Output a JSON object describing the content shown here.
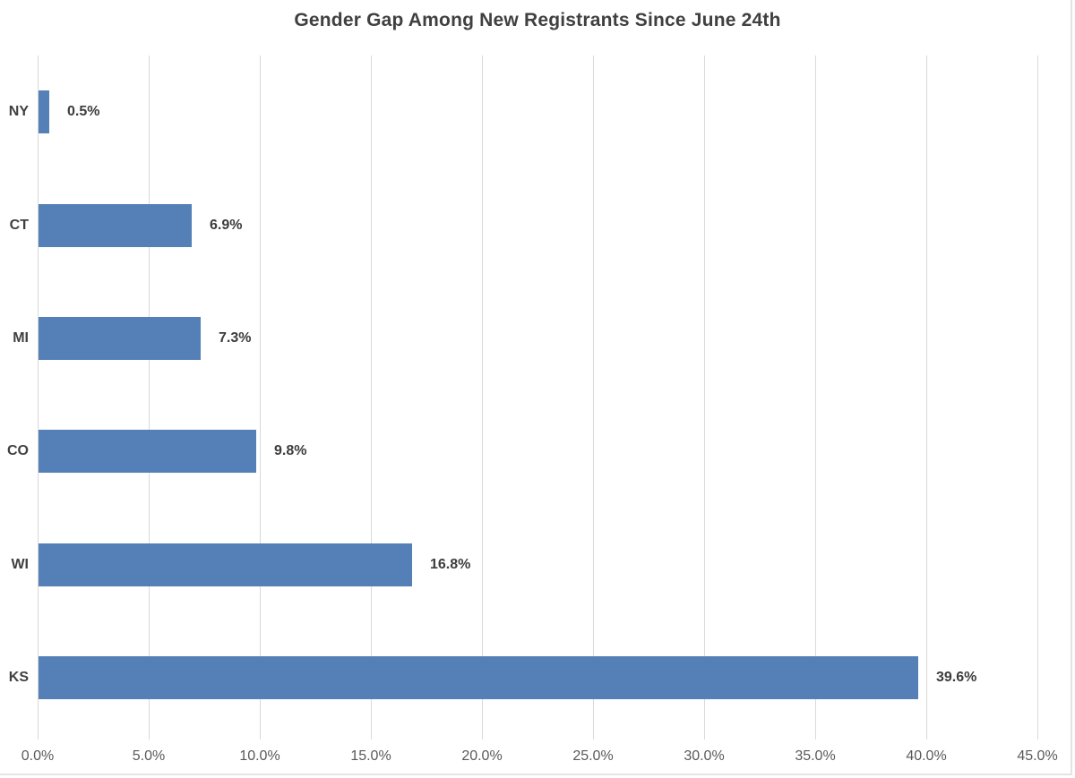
{
  "page": {
    "background": "#ffffff",
    "frame_border_color": "#e4e4e4"
  },
  "chart_data": {
    "type": "bar",
    "orientation": "horizontal",
    "title": "Gender Gap Among New Registrants Since June 24th",
    "categories": [
      "NY",
      "CT",
      "MI",
      "CO",
      "WI",
      "KS"
    ],
    "values": [
      0.5,
      6.9,
      7.3,
      9.8,
      16.8,
      39.6
    ],
    "data_labels": [
      "0.5%",
      "6.9%",
      "7.3%",
      "9.8%",
      "16.8%",
      "39.6%"
    ],
    "x_tick_labels": [
      "0.0%",
      "5.0%",
      "10.0%",
      "15.0%",
      "20.0%",
      "25.0%",
      "30.0%",
      "35.0%",
      "40.0%",
      "45.0%"
    ],
    "xlim": [
      0,
      45
    ],
    "x_tick_step": 5,
    "xlabel": "",
    "ylabel": "",
    "grid": "vertical-only",
    "legend": "none",
    "bar_color": "#5580b7",
    "gridline_color": "#d9d9d9",
    "title_color": "#404040",
    "data_label_color": "#3c3c3c",
    "category_label_color": "#404040",
    "axis_tick_label_color": "#595959"
  }
}
